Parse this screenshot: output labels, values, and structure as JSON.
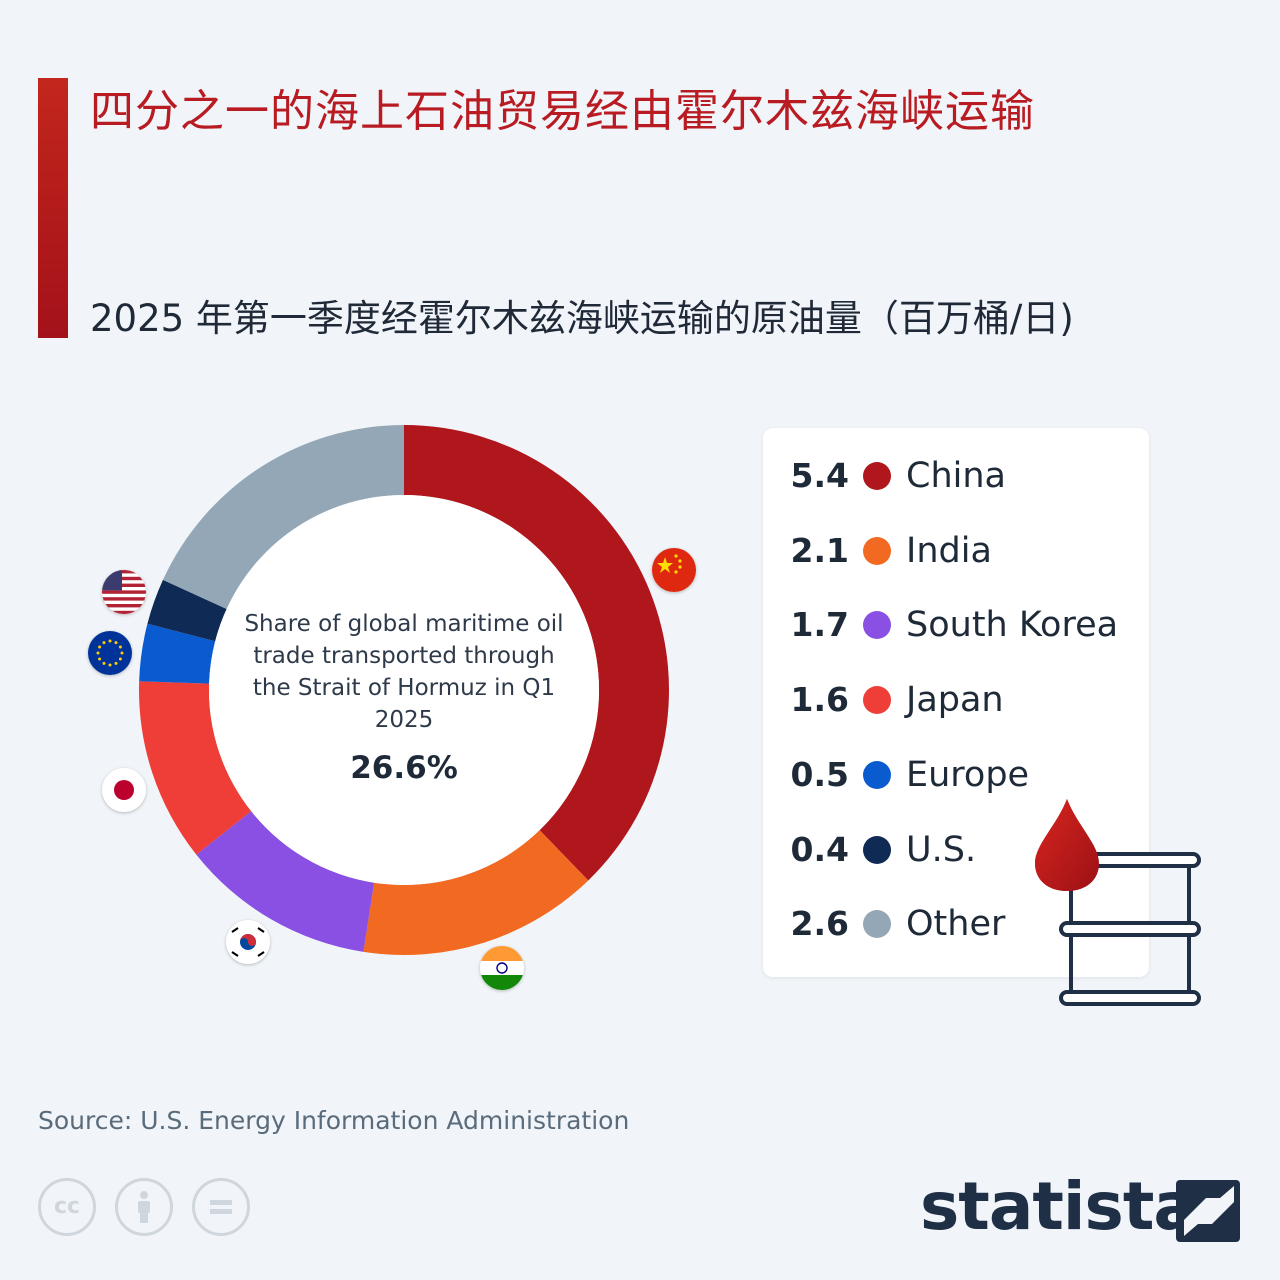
{
  "title": "四分之一的海上石油贸易经由霍尔木兹海峡运输",
  "subtitle": "2025 年第一季度经霍尔木兹海峡运输的原油量（百万桶/日)",
  "center": {
    "text": "Share of global maritime oil trade transported through the Strait of Hormuz in Q1 2025",
    "value": "26.6%"
  },
  "chart_data": {
    "type": "pie",
    "categories": [
      "China",
      "India",
      "South Korea",
      "Japan",
      "Europe",
      "U.S.",
      "Other"
    ],
    "values": [
      5.4,
      2.1,
      1.7,
      1.6,
      0.5,
      0.4,
      2.6
    ],
    "value_labels": [
      "5.4",
      "2.1",
      "1.7",
      "1.6",
      "0.5",
      "0.4",
      "2.6"
    ],
    "colors": [
      "#b0171c",
      "#f26a21",
      "#8a4fe3",
      "#ee3e37",
      "#0a5bd0",
      "#0f2a55",
      "#94a7b6"
    ],
    "title": "",
    "legend_position": "right"
  },
  "source": "Source: U.S. Energy Information Administration",
  "brand": "statista",
  "icons": [
    "cc-icon",
    "attribution-icon",
    "no-derivatives-icon",
    "oil-barrel-icon",
    "oil-drop-icon"
  ]
}
